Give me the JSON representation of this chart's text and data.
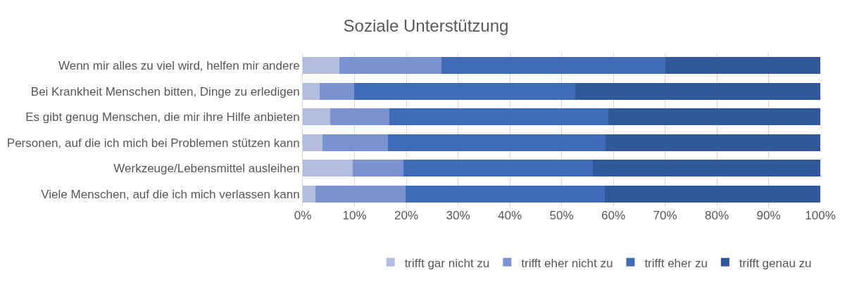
{
  "chart_data": {
    "type": "bar",
    "orientation": "horizontal",
    "stacked": true,
    "title": "Soziale Unterstützung",
    "categories": [
      "Wenn mir alles zu viel wird, helfen mir andere",
      "Bei Krankheit Menschen bitten, Dinge zu erledigen",
      "Es gibt genug Menschen, die mir ihre Hilfe anbieten",
      "Personen, auf die ich mich bei Problemen stützen kann",
      "Werkzeuge/Lebensmittel ausleihen",
      "Viele Menschen, auf die ich mich verlassen kann"
    ],
    "series": [
      {
        "name": "trifft gar nicht zu",
        "color": "#b4bde0",
        "values": [
          7.1,
          3.3,
          5.3,
          3.8,
          9.7,
          2.5
        ]
      },
      {
        "name": "trifft eher nicht zu",
        "color": "#7a92cf",
        "values": [
          19.7,
          6.6,
          11.4,
          12.6,
          9.8,
          17.4
        ]
      },
      {
        "name": "trifft eher zu",
        "color": "#3f6bb7",
        "values": [
          43.2,
          42.8,
          42.4,
          42.1,
          36.6,
          38.4
        ]
      },
      {
        "name": "trifft genau zu",
        "color": "#30589a",
        "values": [
          30.0,
          47.3,
          40.9,
          41.5,
          43.9,
          41.7
        ]
      }
    ],
    "xlim": [
      0,
      100
    ],
    "xticks": [
      {
        "value": 0,
        "label": "0%"
      },
      {
        "value": 10,
        "label": "10%"
      },
      {
        "value": 20,
        "label": "20%"
      },
      {
        "value": 30,
        "label": "30%"
      },
      {
        "value": 40,
        "label": "40%"
      },
      {
        "value": 50,
        "label": "50%"
      },
      {
        "value": 60,
        "label": "60%"
      },
      {
        "value": 70,
        "label": "70%"
      },
      {
        "value": 80,
        "label": "80%"
      },
      {
        "value": 90,
        "label": "90%"
      },
      {
        "value": 100,
        "label": "100%"
      }
    ],
    "grid": "x",
    "legend": "bottom"
  }
}
